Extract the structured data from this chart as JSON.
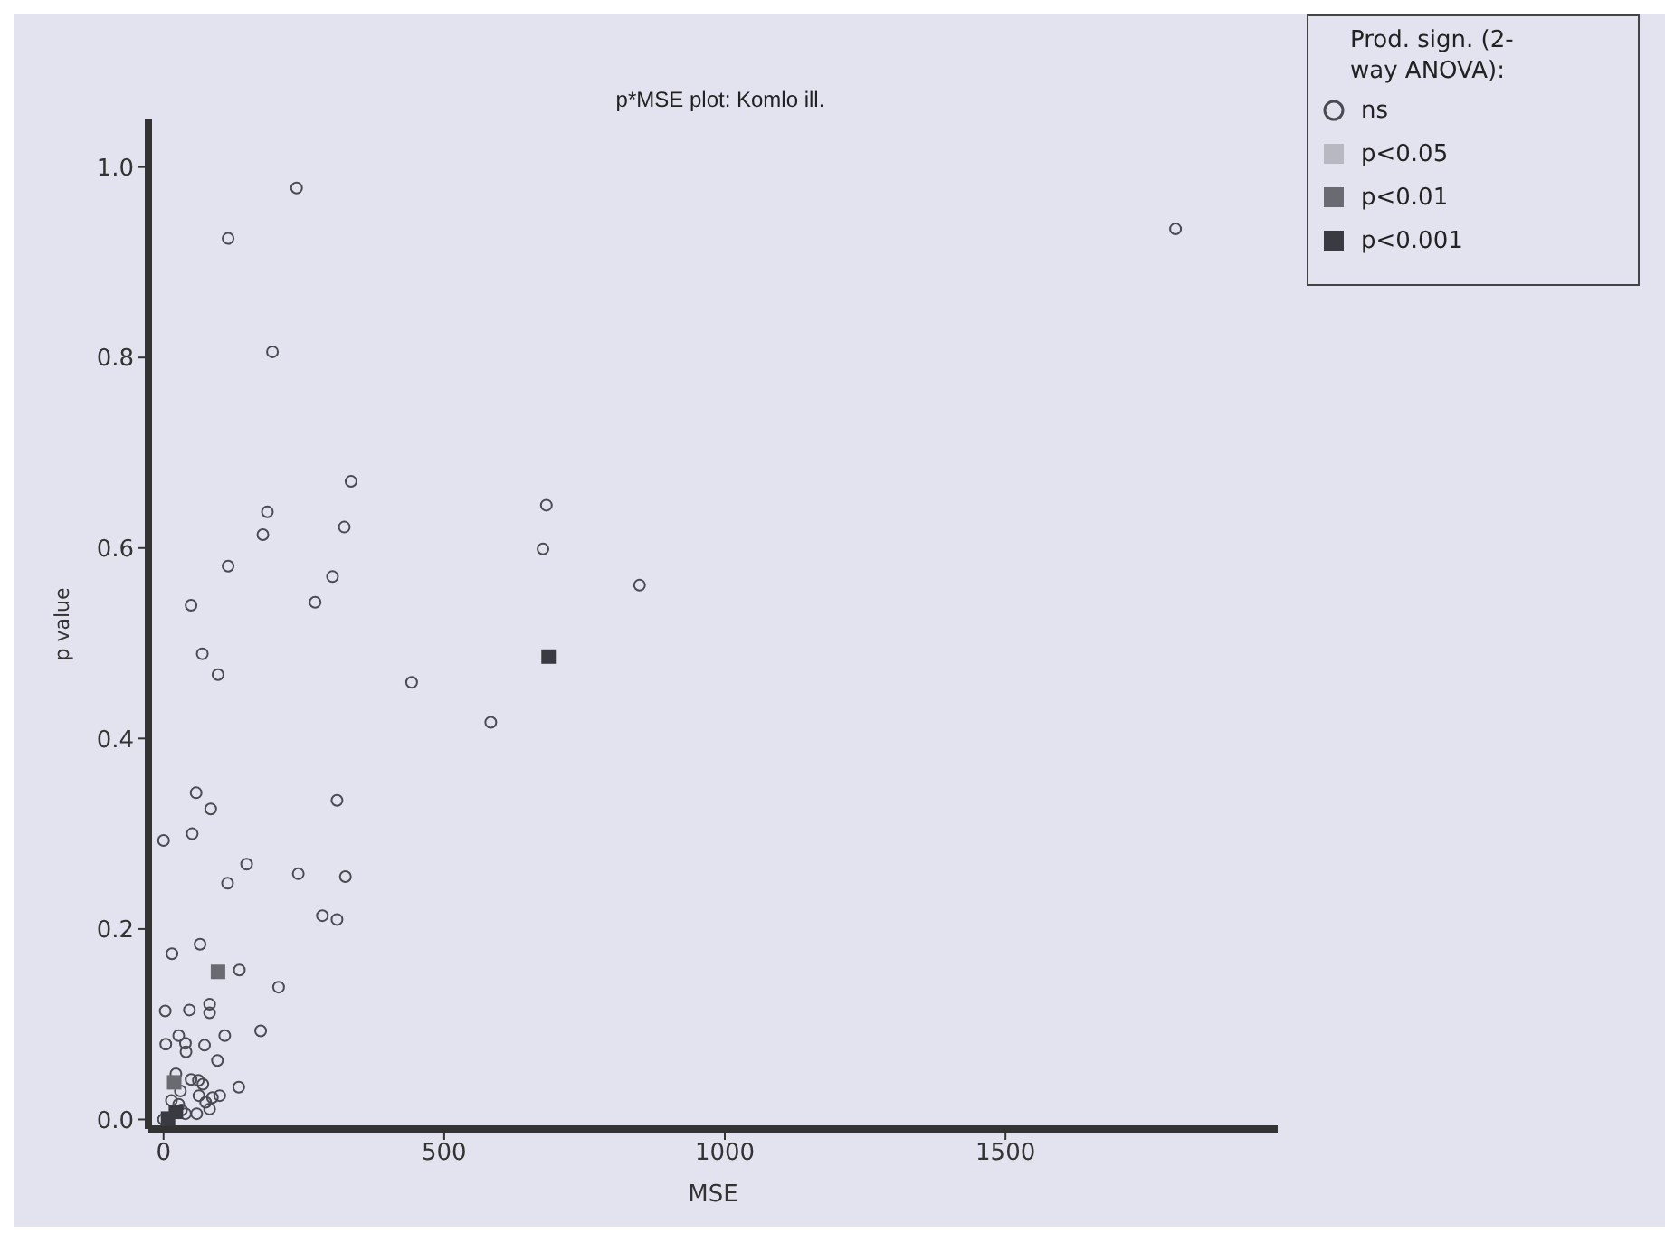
{
  "chart_data": {
    "type": "scatter",
    "title": "p*MSE plot: Komlo ill.",
    "xlabel": "MSE",
    "ylabel": "p value",
    "legend_title": "Prod. sign. (2-way ANOVA):",
    "legend": "top right",
    "xlim": [
      -27,
      1985
    ],
    "xticks": [
      0,
      500,
      1000,
      1500
    ],
    "ylim": [
      -0.01,
      1.05
    ],
    "yticks": [
      {
        "value": 0,
        "label": "0.0"
      },
      {
        "value": 0.2,
        "label": "0.2"
      },
      {
        "value": 0.4,
        "label": "0.4"
      },
      {
        "value": 0.6,
        "label": "0.6"
      },
      {
        "value": 0.8,
        "label": "0.8"
      },
      {
        "value": 1,
        "label": "1.0"
      }
    ],
    "grid": false,
    "series": [
      {
        "name": "ns",
        "color": "#4a4a52",
        "marker": "circle",
        "x": [
          237,
          115,
          194,
          334,
          185,
          177,
          322,
          682,
          676,
          115,
          301,
          848,
          270,
          49,
          1803,
          69,
          97,
          442,
          583,
          58,
          309,
          84,
          51,
          0,
          148,
          240,
          324,
          114,
          283,
          309,
          65,
          15,
          135,
          205,
          82,
          82,
          46,
          3,
          173,
          109,
          27,
          39,
          4,
          73,
          40,
          96,
          22,
          49,
          62,
          70,
          134,
          30,
          63,
          87,
          100,
          14,
          75,
          27,
          82,
          32,
          59,
          39,
          0
        ],
        "values": [
          0.978,
          0.925,
          0.806,
          0.67,
          0.638,
          0.614,
          0.622,
          0.645,
          0.599,
          0.581,
          0.57,
          0.561,
          0.543,
          0.54,
          0.935,
          0.489,
          0.467,
          0.459,
          0.417,
          0.343,
          0.335,
          0.326,
          0.3,
          0.293,
          0.268,
          0.258,
          0.255,
          0.248,
          0.214,
          0.21,
          0.184,
          0.174,
          0.157,
          0.139,
          0.121,
          0.112,
          0.115,
          0.114,
          0.093,
          0.088,
          0.088,
          0.08,
          0.079,
          0.078,
          0.071,
          0.062,
          0.048,
          0.042,
          0.041,
          0.037,
          0.034,
          0.03,
          0.025,
          0.023,
          0.025,
          0.02,
          0.018,
          0.016,
          0.011,
          0.01,
          0.006,
          0.006,
          0
        ]
      },
      {
        "name": "p<0.05",
        "color": "#b8b8c2",
        "marker": "square"
      },
      {
        "name": "p<0.01",
        "color": "#6a6a72",
        "marker": "square",
        "x": [
          97,
          19
        ],
        "values": [
          0.155,
          0.039
        ]
      },
      {
        "name": "p<0.001",
        "color": "#3a3a42",
        "marker": "square",
        "x": [
          686,
          22,
          8
        ],
        "values": [
          0.486,
          0.008,
          0.001
        ]
      }
    ]
  }
}
